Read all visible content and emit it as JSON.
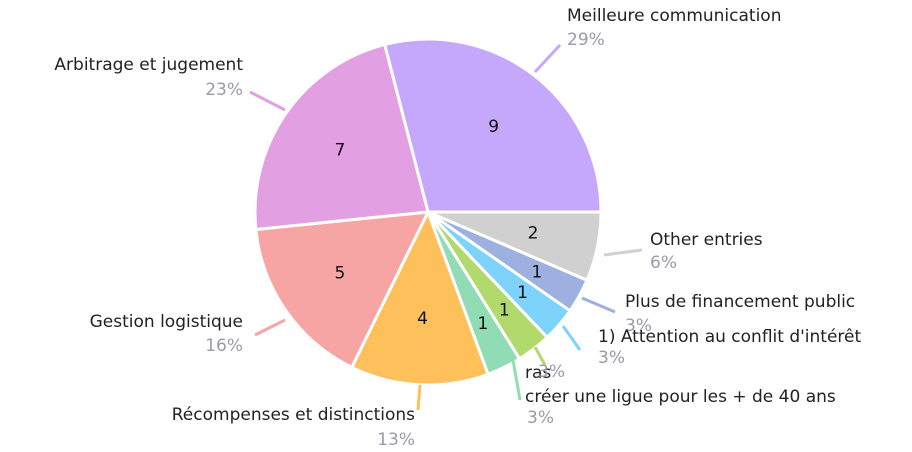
{
  "chart_data": {
    "type": "pie",
    "categories": [
      "Meilleure communication",
      "Other entries",
      "Plus de financement public",
      "1) Attention au conflit d'intérêt",
      "ras",
      "créer une ligue pour les + de 40 ans",
      "Récompenses et distinctions",
      "Gestion logistique",
      "Arbitrage et jugement"
    ],
    "values": [
      9,
      2,
      1,
      1,
      1,
      1,
      4,
      5,
      7
    ],
    "percent_labels": [
      "29%",
      "6%",
      "3%",
      "3%",
      "3%",
      "3%",
      "13%",
      "16%",
      "23%"
    ],
    "colors": [
      "#c5a8fb",
      "#d0d0d0",
      "#9eb0e0",
      "#7dd3fb",
      "#b2d96b",
      "#8fdcb5",
      "#fdc05b",
      "#f7a4a4",
      "#e2a0e3"
    ]
  }
}
